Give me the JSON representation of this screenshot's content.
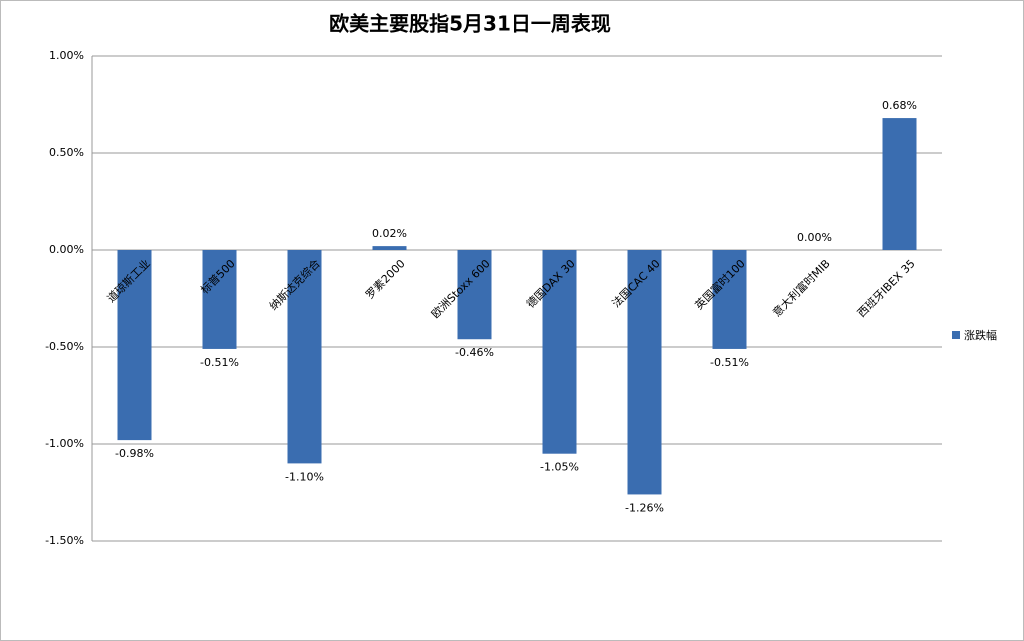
{
  "chart_data": {
    "type": "bar",
    "title": "欧美主要股指5月31日一周表现",
    "categories": [
      "道琼斯工业",
      "标普500",
      "纳斯达克综合",
      "罗素2000",
      "欧洲Stoxx 600",
      "德国DAX 30",
      "法国CAC 40",
      "英国富时100",
      "意大利富时MIB",
      "西班牙IBEX 35"
    ],
    "series": [
      {
        "name": "涨跌幅",
        "color": "#3a6db0",
        "values": [
          -0.98,
          -0.51,
          -1.1,
          0.02,
          -0.46,
          -1.05,
          -1.26,
          -0.51,
          0.0,
          0.68
        ],
        "value_labels": [
          "-0.98%",
          "-0.51%",
          "-1.10%",
          "0.02%",
          "-0.46%",
          "-1.05%",
          "-1.26%",
          "-0.51%",
          "0.00%",
          "0.68%"
        ]
      }
    ],
    "ylim": [
      -1.5,
      1
    ],
    "yticks": [
      {
        "value": -1.5,
        "label": "-1.50%"
      },
      {
        "value": -1,
        "label": "-1.00%"
      },
      {
        "value": -0.5,
        "label": "-0.50%"
      },
      {
        "value": 0,
        "label": "0.00%"
      },
      {
        "value": 0.5,
        "label": "0.50%"
      },
      {
        "value": 1,
        "label": "1.00%"
      }
    ],
    "grid": true,
    "legend": "right"
  }
}
